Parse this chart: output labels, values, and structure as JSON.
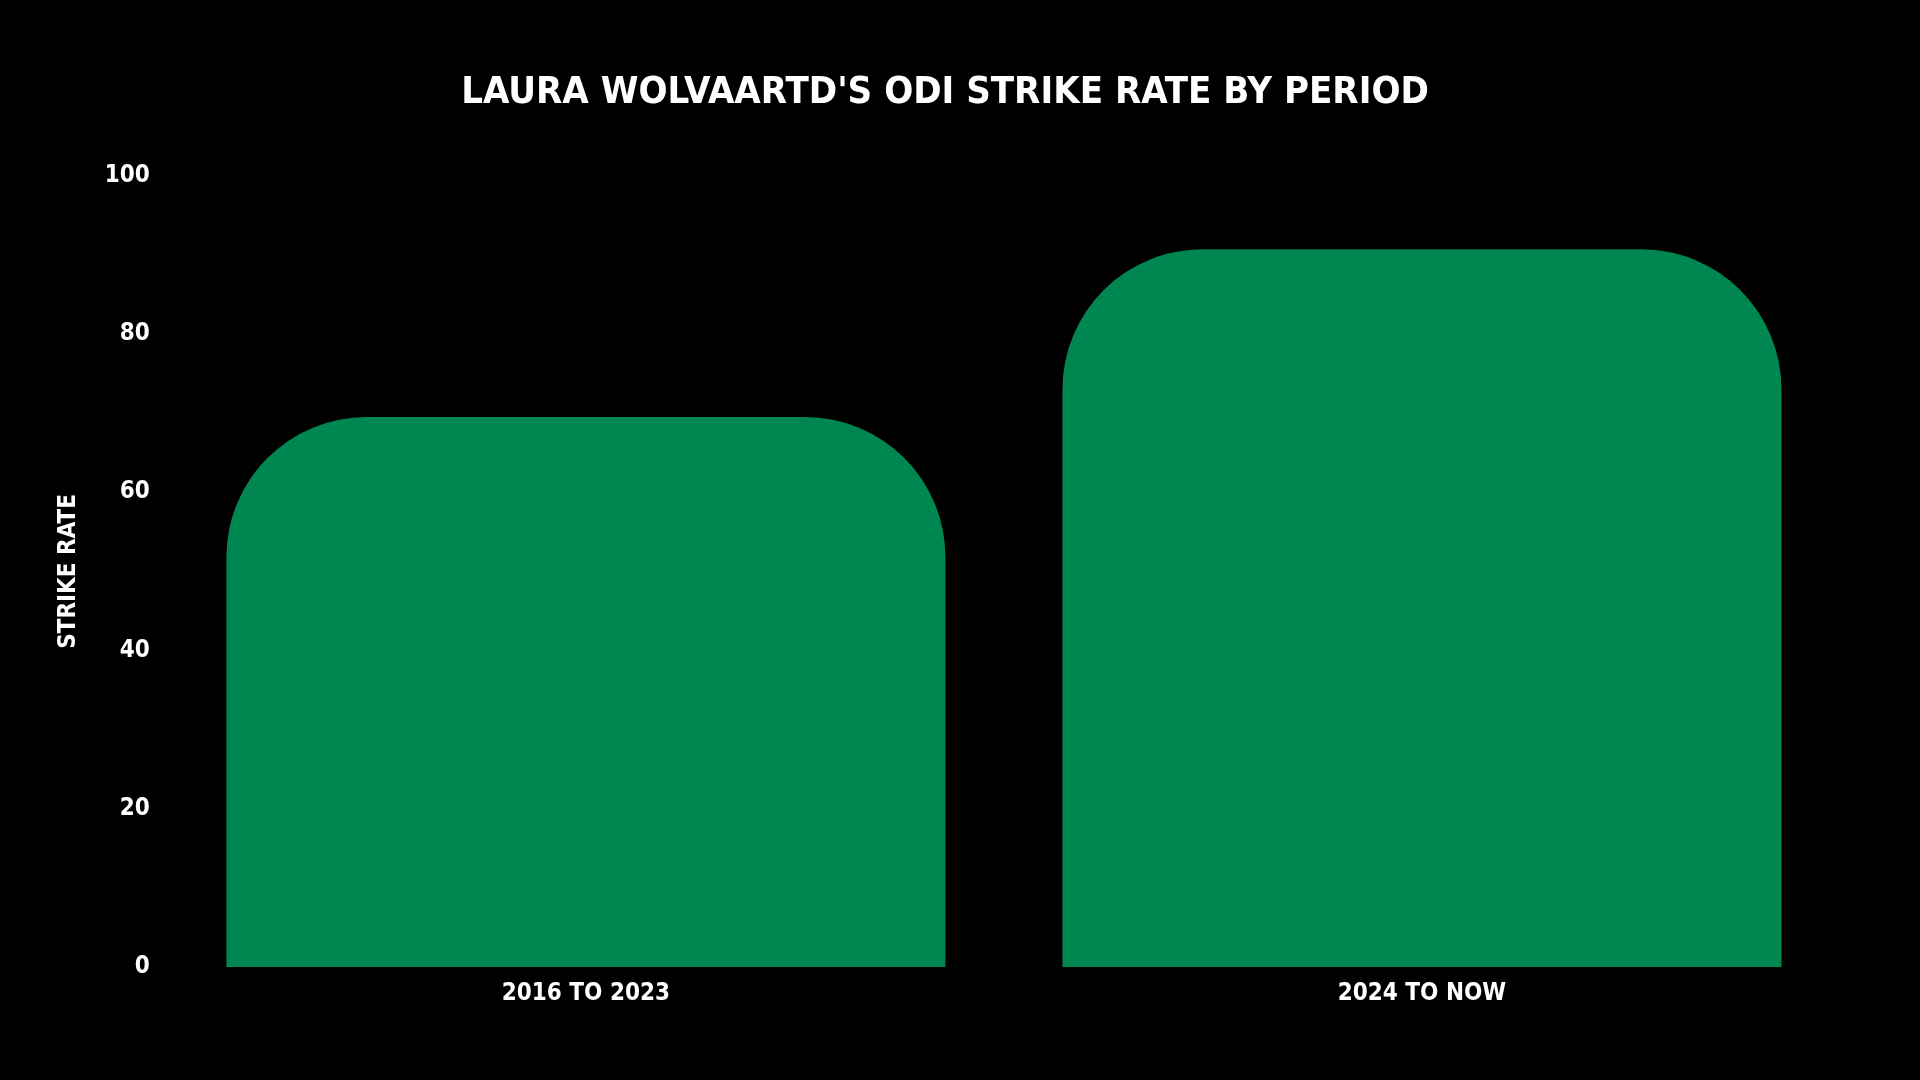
{
  "chart_data": {
    "type": "bar",
    "title": "LAURA WOLVAARTD'S ODI STRIKE RATE BY PERIOD",
    "ylabel": "STRIKE RATE",
    "categories": [
      "2016 TO 2023",
      "2024 TO NOW"
    ],
    "values": [
      69.5,
      90.7
    ],
    "color": "#008751",
    "ylim": [
      0,
      100
    ],
    "yticks": [
      0,
      20,
      40,
      60,
      80,
      100
    ],
    "grid": false,
    "legend": false
  }
}
